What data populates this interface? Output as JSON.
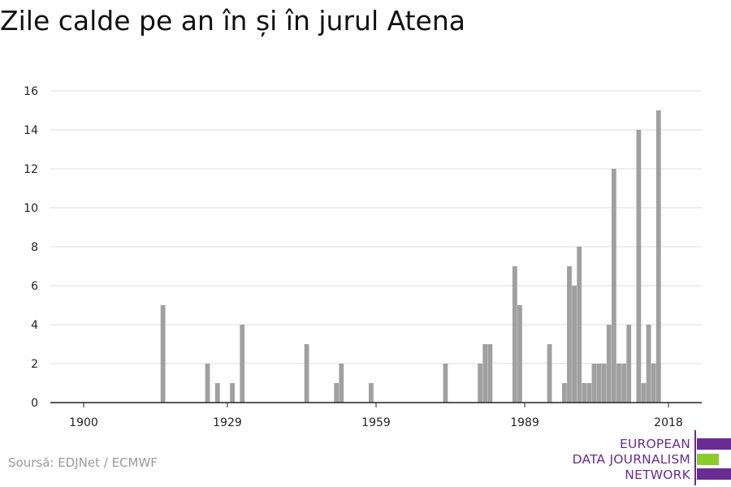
{
  "title": "Zile calde pe an în și în jurul Atena",
  "source": "Soursă: EDJNet / ECMWF",
  "logo": {
    "lines": [
      "EUROPEAN",
      "DATA JOURNALISM",
      "NETWORK"
    ]
  },
  "colors": {
    "bar": "#a0a0a0",
    "grid": "#dcdcdc",
    "axis": "#222222",
    "brand_purple": "#6a2c91",
    "brand_green": "#8ccc2a"
  },
  "chart_data": {
    "type": "bar",
    "title": "Zile calde pe an în și în jurul Atena",
    "xlabel": "",
    "ylabel": "",
    "xlim": [
      1900,
      2018
    ],
    "ylim": [
      0,
      16
    ],
    "x_ticks": [
      1900,
      1929,
      1959,
      1989,
      2018
    ],
    "y_ticks": [
      0,
      2,
      4,
      6,
      8,
      10,
      12,
      14,
      16
    ],
    "grid": true,
    "legend": false,
    "x": [
      1916,
      1925,
      1927,
      1930,
      1932,
      1945,
      1951,
      1952,
      1958,
      1973,
      1980,
      1981,
      1982,
      1987,
      1988,
      1994,
      1997,
      1998,
      1999,
      2000,
      2001,
      2002,
      2003,
      2004,
      2005,
      2006,
      2007,
      2008,
      2009,
      2010,
      2012,
      2013,
      2014,
      2015,
      2016,
      2017
    ],
    "values": [
      5,
      2,
      1,
      1,
      4,
      3,
      1,
      2,
      1,
      2,
      2,
      3,
      3,
      7,
      5,
      3,
      1,
      7,
      6,
      8,
      1,
      1,
      2,
      2,
      2,
      4,
      12,
      2,
      2,
      4,
      14,
      1,
      4,
      2,
      15,
      0
    ]
  }
}
